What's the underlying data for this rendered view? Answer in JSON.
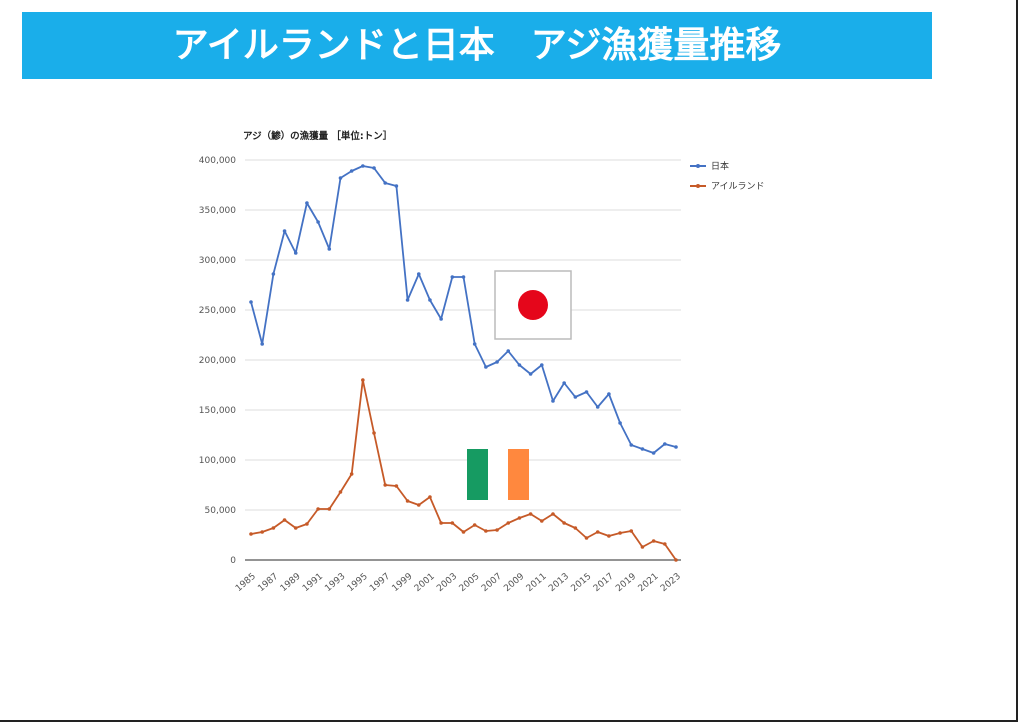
{
  "banner": {
    "title": "アイルランドと日本　アジ漁獲量推移"
  },
  "chart_data": {
    "type": "line",
    "title": "アジ（鯵）の漁獲量 ［単位:トン］",
    "xlabel": "",
    "ylabel": "",
    "ylim": [
      0,
      400000
    ],
    "yticks": [
      "400,000",
      "350,000",
      "300,000",
      "250,000",
      "200,000",
      "150,000",
      "100,000",
      "50,000",
      "0"
    ],
    "x": [
      1985,
      1986,
      1987,
      1988,
      1989,
      1990,
      1991,
      1992,
      1993,
      1994,
      1995,
      1996,
      1997,
      1998,
      1999,
      2000,
      2001,
      2002,
      2003,
      2004,
      2005,
      2006,
      2007,
      2008,
      2009,
      2010,
      2011,
      2012,
      2013,
      2014,
      2015,
      2016,
      2017,
      2018,
      2019,
      2020,
      2021,
      2022,
      2023
    ],
    "xticklabels": [
      "1985",
      "1987",
      "1989",
      "1991",
      "1993",
      "1995",
      "1997",
      "1999",
      "2001",
      "2003",
      "2005",
      "2007",
      "2009",
      "2011",
      "2013",
      "2015",
      "2017",
      "2019",
      "2021",
      "2023"
    ],
    "series": [
      {
        "name": "日本",
        "color": "#4472c4",
        "values": [
          258000,
          216000,
          286000,
          329000,
          307000,
          357000,
          338000,
          311000,
          382000,
          389000,
          394000,
          392000,
          377000,
          374000,
          260000,
          286000,
          260000,
          241000,
          283000,
          283000,
          216000,
          193000,
          198000,
          209000,
          195000,
          186000,
          195000,
          159000,
          177000,
          163000,
          168000,
          153000,
          166000,
          137000,
          115000,
          111000,
          107000,
          116000,
          113000
        ]
      },
      {
        "name": "アイルランド",
        "color": "#c65a28",
        "values": [
          26000,
          28000,
          32000,
          40000,
          32000,
          36000,
          51000,
          51000,
          68000,
          86000,
          180000,
          127000,
          75000,
          74000,
          59000,
          55000,
          63000,
          37000,
          37000,
          28000,
          35000,
          29000,
          30000,
          37000,
          42000,
          46000,
          39000,
          46000,
          37000,
          32000,
          22000,
          28000,
          24000,
          27000,
          29000,
          13000,
          19000,
          16000,
          0
        ]
      }
    ],
    "grid": true,
    "legend": "top-right"
  }
}
